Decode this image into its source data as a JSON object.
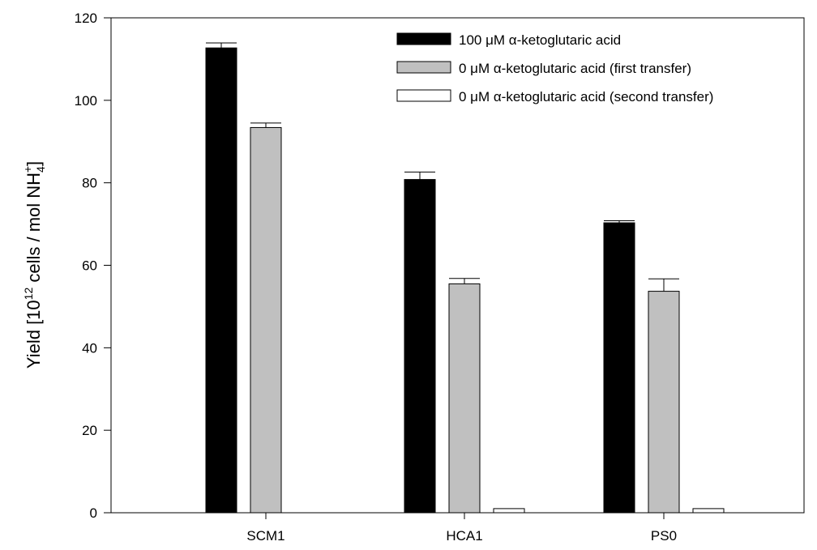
{
  "chart_data": {
    "type": "bar",
    "categories": [
      "SCM1",
      "HCA1",
      "PS0"
    ],
    "series": [
      {
        "name": "100 μM α-ketoglutaric acid",
        "color": "#000000",
        "values": [
          112.7,
          80.8,
          70.3
        ],
        "errors": [
          1.2,
          1.8,
          0.5
        ]
      },
      {
        "name": "0 μM α-ketoglutaric acid (first transfer)",
        "color": "#c0c0c0",
        "values": [
          93.4,
          55.5,
          53.7
        ],
        "errors": [
          1.1,
          1.3,
          3.0
        ]
      },
      {
        "name": "0 μM α-ketoglutaric acid (second transfer)",
        "color": "#ffffff",
        "values": [
          null,
          1.0,
          1.0
        ],
        "errors": [
          0,
          0,
          0
        ]
      }
    ],
    "ylabel": {
      "prefix": "Yield [10",
      "exp": "12",
      "middle": " cells / mol NH",
      "sub": "4",
      "sup": "+",
      "suffix": "]"
    },
    "ylim": [
      0,
      120
    ],
    "yticks": [
      0,
      20,
      40,
      60,
      80,
      100,
      120
    ],
    "grid": false,
    "legend_position": "top-right"
  }
}
